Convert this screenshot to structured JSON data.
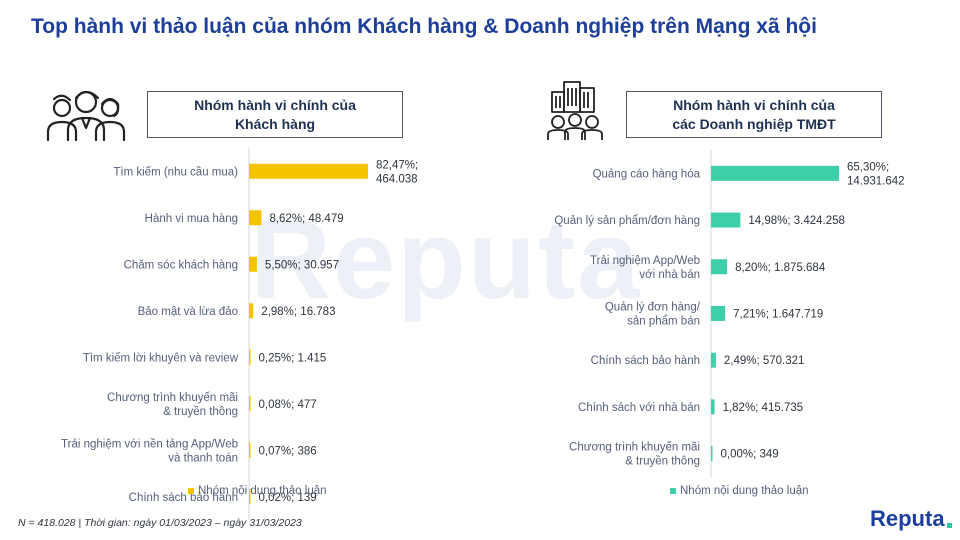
{
  "header": {
    "title": "Top hành vi thảo luận của nhóm Khách hàng & Doanh nghiệp trên Mạng xã hội"
  },
  "left_panel": {
    "heading_line1": "Nhóm hành vi chính của",
    "heading_line2": "Khách hàng",
    "icon": "people-group-icon"
  },
  "right_panel": {
    "heading_line1": "Nhóm hành vi chính của",
    "heading_line2": "các Doanh nghiệp TMĐT",
    "icon": "buildings-people-icon"
  },
  "footnote": "N = 418.028 | Thời gian: ngày 01/03/2023 – ngày 31/03/2023",
  "brand": {
    "name": "Reputa",
    "watermark": "Reputa"
  },
  "chart_data": [
    {
      "type": "bar",
      "orientation": "horizontal",
      "color": "#f5c400",
      "categories": [
        [
          "Tìm kiếm (nhu cầu mua)"
        ],
        [
          "Hành vi mua hàng"
        ],
        [
          "Chăm sóc khách hàng"
        ],
        [
          "Bảo mật và lừa đảo"
        ],
        [
          "Tìm kiếm lời khuyên và review"
        ],
        [
          "Chương trình khuyến mãi",
          "& truyền thông"
        ],
        [
          "Trải nghiệm với nền tảng App/Web",
          "và thanh toán"
        ],
        [
          "Chính sách bảo hành"
        ]
      ],
      "series": [
        {
          "name": "Nhóm nội dung thảo luận",
          "values": [
            82.47,
            8.62,
            5.5,
            2.98,
            0.25,
            0.08,
            0.07,
            0.02
          ],
          "percent_labels": [
            "82,47%",
            "8,62%",
            "5,50%",
            "2,98%",
            "0,25%",
            "0,08%",
            "0,07%",
            "0,02%"
          ],
          "count_labels": [
            "464.038",
            "48.479",
            "30.957",
            "16.783",
            "1.415",
            "477",
            "386",
            "139"
          ]
        }
      ],
      "legend_position": "bottom"
    },
    {
      "type": "bar",
      "orientation": "horizontal",
      "color": "#3ecfa8",
      "categories": [
        [
          "Quảng cáo hàng hóa"
        ],
        [
          "Quản lý sản phẩm/đơn hàng"
        ],
        [
          "Trải nghiệm App/Web",
          "với nhà bán"
        ],
        [
          "Quản lý đơn hàng/",
          "sản phẩm bán"
        ],
        [
          "Chính sách bảo hành"
        ],
        [
          "Chính sách với nhà bán"
        ],
        [
          "Chương trình khuyến mãi",
          "& truyền thông"
        ]
      ],
      "series": [
        {
          "name": "Nhóm nội dung thảo luận",
          "values": [
            65.3,
            14.98,
            8.2,
            7.21,
            2.49,
            1.82,
            0.0
          ],
          "percent_labels": [
            "65,30%",
            "14,98%",
            "8,20%",
            "7,21%",
            "2,49%",
            "1,82%",
            "0,00%"
          ],
          "count_labels": [
            "14.931.642",
            "3.424.258",
            "1.875.684",
            "1.647.719",
            "570.321",
            "415.735",
            "349"
          ]
        }
      ],
      "legend_position": "bottom"
    }
  ]
}
